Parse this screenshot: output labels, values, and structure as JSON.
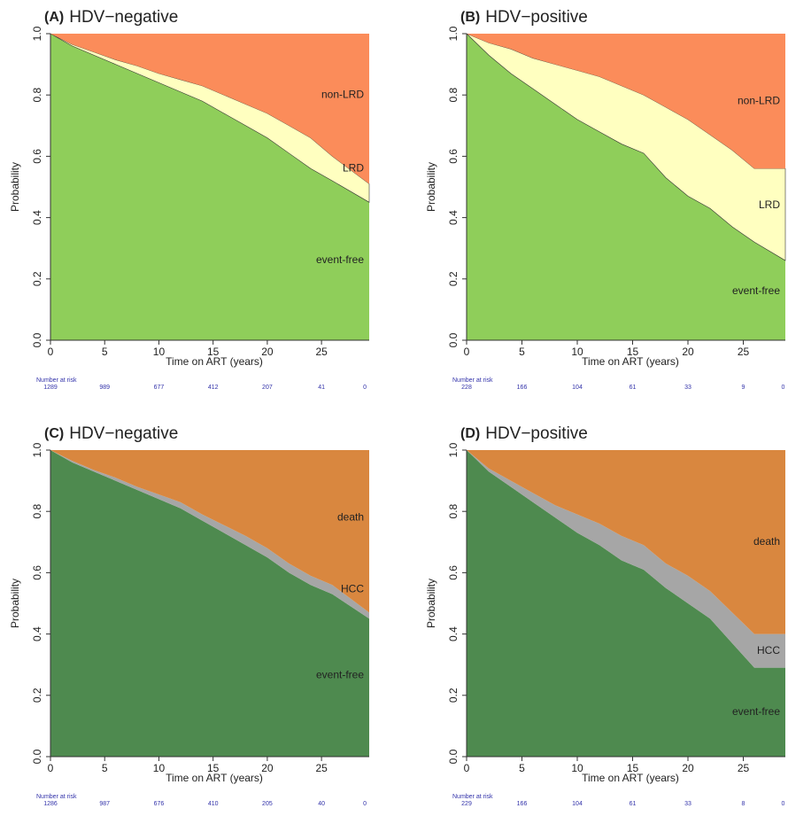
{
  "chart_data": [
    {
      "type": "area",
      "label": "(A)",
      "title": "HDV−negative",
      "xlabel": "Time on ART (years)",
      "ylabel": "Probability",
      "x": [
        0,
        2,
        4,
        6,
        8,
        10,
        12,
        14,
        16,
        18,
        20,
        22,
        24,
        26,
        29.4
      ],
      "series": [
        {
          "name": "event-free",
          "color": "#8fce5a",
          "values": [
            1.0,
            0.96,
            0.93,
            0.9,
            0.87,
            0.84,
            0.81,
            0.78,
            0.74,
            0.7,
            0.66,
            0.61,
            0.56,
            0.52,
            0.45
          ]
        },
        {
          "name": "LRD",
          "color": "#ffffc0",
          "values": [
            0,
            0.005,
            0.01,
            0.015,
            0.025,
            0.03,
            0.04,
            0.05,
            0.06,
            0.07,
            0.08,
            0.09,
            0.1,
            0.08,
            0.06
          ]
        },
        {
          "name": "non-LRD",
          "color": "#fb8c5a",
          "values": [
            0,
            0.035,
            0.06,
            0.085,
            0.105,
            0.13,
            0.15,
            0.17,
            0.2,
            0.23,
            0.26,
            0.3,
            0.34,
            0.4,
            0.49
          ]
        }
      ],
      "xlim": [
        0,
        29.4
      ],
      "ylim": [
        0,
        1
      ],
      "xticks": [
        0,
        5,
        10,
        15,
        20,
        25
      ],
      "yticks": [
        {
          "value": 0,
          "label": "0.0"
        },
        0.2,
        0.4,
        0.6,
        0.8,
        {
          "value": 1,
          "label": "1.0"
        }
      ],
      "risk_label": "Number at risk",
      "risk_times": [
        0,
        5,
        10,
        15,
        20,
        25,
        29
      ],
      "risk_values": [
        1289,
        989,
        677,
        412,
        207,
        41,
        0
      ]
    },
    {
      "type": "area",
      "label": "(B)",
      "title": "HDV−positive",
      "xlabel": "Time on ART (years)",
      "ylabel": "Probability",
      "x": [
        0,
        2,
        4,
        6,
        8,
        10,
        12,
        14,
        16,
        18,
        20,
        22,
        24,
        26,
        28.8
      ],
      "series": [
        {
          "name": "event-free",
          "color": "#8fce5a",
          "values": [
            1.0,
            0.93,
            0.87,
            0.82,
            0.77,
            0.72,
            0.68,
            0.64,
            0.61,
            0.53,
            0.47,
            0.43,
            0.37,
            0.32,
            0.26
          ]
        },
        {
          "name": "LRD",
          "color": "#ffffc0",
          "values": [
            0,
            0.04,
            0.08,
            0.1,
            0.13,
            0.16,
            0.18,
            0.19,
            0.19,
            0.23,
            0.25,
            0.24,
            0.25,
            0.24,
            0.3
          ]
        },
        {
          "name": "non-LRD",
          "color": "#fb8c5a",
          "values": [
            0,
            0.03,
            0.05,
            0.08,
            0.1,
            0.12,
            0.14,
            0.17,
            0.2,
            0.24,
            0.28,
            0.33,
            0.38,
            0.44,
            0.44
          ]
        }
      ],
      "xlim": [
        0,
        28.8
      ],
      "ylim": [
        0,
        1
      ],
      "xticks": [
        0,
        5,
        10,
        15,
        20,
        25
      ],
      "yticks": [
        {
          "value": 0,
          "label": "0.0"
        },
        0.2,
        0.4,
        0.6,
        0.8,
        {
          "value": 1,
          "label": "1.0"
        }
      ],
      "risk_label": "Number at risk",
      "risk_times": [
        0,
        5,
        10,
        15,
        20,
        25,
        28.6
      ],
      "risk_values": [
        228,
        166,
        104,
        61,
        33,
        9,
        0
      ]
    },
    {
      "type": "area",
      "label": "(C)",
      "title": "HDV−negative",
      "xlabel": "Time on ART (years)",
      "ylabel": "Probability",
      "x": [
        0,
        2,
        4,
        6,
        8,
        10,
        12,
        14,
        16,
        18,
        20,
        22,
        24,
        26,
        29.4
      ],
      "series": [
        {
          "name": "event-free",
          "color": "#4e8a4f",
          "values": [
            1.0,
            0.96,
            0.93,
            0.9,
            0.87,
            0.84,
            0.81,
            0.77,
            0.73,
            0.69,
            0.65,
            0.6,
            0.56,
            0.53,
            0.45
          ]
        },
        {
          "name": "HCC",
          "color": "#a6a6a6",
          "values": [
            0,
            0.005,
            0.005,
            0.01,
            0.01,
            0.015,
            0.02,
            0.02,
            0.025,
            0.03,
            0.03,
            0.03,
            0.03,
            0.03,
            0.02
          ]
        },
        {
          "name": "death",
          "color": "#d9873f",
          "values": [
            0,
            0.035,
            0.065,
            0.09,
            0.12,
            0.145,
            0.17,
            0.21,
            0.245,
            0.28,
            0.32,
            0.37,
            0.41,
            0.44,
            0.53
          ]
        }
      ],
      "xlim": [
        0,
        29.4
      ],
      "ylim": [
        0,
        1
      ],
      "xticks": [
        0,
        5,
        10,
        15,
        20,
        25
      ],
      "yticks": [
        {
          "value": 0,
          "label": "0.0"
        },
        0.2,
        0.4,
        0.6,
        0.8,
        {
          "value": 1,
          "label": "1.0"
        }
      ],
      "risk_label": "Number at risk",
      "risk_times": [
        0,
        5,
        10,
        15,
        20,
        25,
        29
      ],
      "risk_values": [
        1286,
        987,
        676,
        410,
        205,
        40,
        0
      ]
    },
    {
      "type": "area",
      "label": "(D)",
      "title": "HDV−positive",
      "xlabel": "Time on ART (years)",
      "ylabel": "Probability",
      "x": [
        0,
        2,
        4,
        6,
        8,
        10,
        12,
        14,
        16,
        18,
        20,
        22,
        24,
        26,
        28.8
      ],
      "series": [
        {
          "name": "event-free",
          "color": "#4e8a4f",
          "values": [
            1.0,
            0.93,
            0.88,
            0.83,
            0.78,
            0.73,
            0.69,
            0.64,
            0.61,
            0.55,
            0.5,
            0.45,
            0.37,
            0.29,
            0.29
          ]
        },
        {
          "name": "HCC",
          "color": "#a6a6a6",
          "values": [
            0,
            0.01,
            0.02,
            0.03,
            0.04,
            0.06,
            0.07,
            0.08,
            0.08,
            0.08,
            0.09,
            0.09,
            0.1,
            0.11,
            0.11
          ]
        },
        {
          "name": "death",
          "color": "#d9873f",
          "values": [
            0,
            0.06,
            0.1,
            0.14,
            0.18,
            0.21,
            0.24,
            0.28,
            0.31,
            0.37,
            0.41,
            0.46,
            0.53,
            0.6,
            0.6
          ]
        }
      ],
      "xlim": [
        0,
        28.8
      ],
      "ylim": [
        0,
        1
      ],
      "xticks": [
        0,
        5,
        10,
        15,
        20,
        25
      ],
      "yticks": [
        {
          "value": 0,
          "label": "0.0"
        },
        0.2,
        0.4,
        0.6,
        0.8,
        {
          "value": 1,
          "label": "1.0"
        }
      ],
      "risk_label": "Number at risk",
      "risk_times": [
        0,
        5,
        10,
        15,
        20,
        25,
        28.6
      ],
      "risk_values": [
        229,
        166,
        104,
        61,
        33,
        8,
        0
      ]
    }
  ]
}
